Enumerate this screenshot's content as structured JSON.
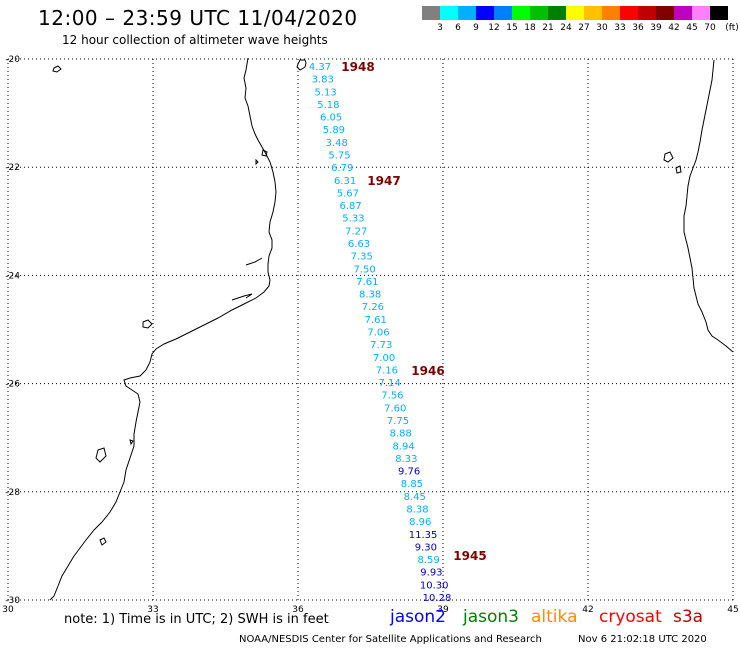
{
  "header": {
    "title": "12:00 – 23:59 UTC 11/04/2020",
    "subtitle": "12 hour collection of altimeter wave heights"
  },
  "legend": {
    "colors": [
      "#808080",
      "#00ffff",
      "#00b0ff",
      "#0000ff",
      "#0080ff",
      "#00ff00",
      "#00c000",
      "#008000",
      "#ffff00",
      "#ffc000",
      "#ff8000",
      "#ff0000",
      "#c00000",
      "#800000",
      "#c000c0",
      "#ff80ff",
      "#000000"
    ],
    "labels": [
      "3",
      "6",
      "9",
      "12",
      "15",
      "18",
      "21",
      "24",
      "27",
      "30",
      "33",
      "36",
      "39",
      "42",
      "45",
      "70"
    ],
    "unit": "(ft)"
  },
  "map": {
    "lon_ticks": [
      "30",
      "33",
      "36",
      "39",
      "42",
      "45"
    ],
    "lat_ticks": [
      "-20",
      "-22",
      "-24",
      "-26",
      "-28",
      "-30"
    ],
    "lon_range": [
      30,
      45
    ],
    "lat_range": [
      -30,
      -20
    ],
    "coast_color": "#000000",
    "grid_style": "dotted"
  },
  "track": {
    "color_cyan": "#00b0ff",
    "color_blue": "#0000cd",
    "values": [
      {
        "v": "4.37",
        "c": "cyan"
      },
      {
        "v": "3.83",
        "c": "cyan"
      },
      {
        "v": "5.13",
        "c": "cyan"
      },
      {
        "v": "5.18",
        "c": "cyan"
      },
      {
        "v": "6.05",
        "c": "cyan"
      },
      {
        "v": "5.89",
        "c": "cyan"
      },
      {
        "v": "3.48",
        "c": "cyan"
      },
      {
        "v": "5.75",
        "c": "cyan"
      },
      {
        "v": "6.79",
        "c": "cyan"
      },
      {
        "v": "6.31",
        "c": "cyan"
      },
      {
        "v": "5.67",
        "c": "cyan"
      },
      {
        "v": "6.87",
        "c": "cyan"
      },
      {
        "v": "5.33",
        "c": "cyan"
      },
      {
        "v": "7.27",
        "c": "cyan"
      },
      {
        "v": "6.63",
        "c": "cyan"
      },
      {
        "v": "7.35",
        "c": "cyan"
      },
      {
        "v": "7.50",
        "c": "cyan"
      },
      {
        "v": "7.61",
        "c": "cyan"
      },
      {
        "v": "8.38",
        "c": "cyan"
      },
      {
        "v": "7.26",
        "c": "cyan"
      },
      {
        "v": "7.61",
        "c": "cyan"
      },
      {
        "v": "7.06",
        "c": "cyan"
      },
      {
        "v": "7.73",
        "c": "cyan"
      },
      {
        "v": "7.00",
        "c": "cyan"
      },
      {
        "v": "7.16",
        "c": "cyan"
      },
      {
        "v": "7.14",
        "c": "cyan"
      },
      {
        "v": "7.56",
        "c": "cyan"
      },
      {
        "v": "7.60",
        "c": "cyan"
      },
      {
        "v": "7.75",
        "c": "cyan"
      },
      {
        "v": "8.88",
        "c": "cyan"
      },
      {
        "v": "8.94",
        "c": "cyan"
      },
      {
        "v": "8.33",
        "c": "cyan"
      },
      {
        "v": "9.76",
        "c": "blue"
      },
      {
        "v": "8.85",
        "c": "cyan"
      },
      {
        "v": "8.45",
        "c": "cyan"
      },
      {
        "v": "8.38",
        "c": "cyan"
      },
      {
        "v": "8.96",
        "c": "cyan"
      },
      {
        "v": "11.35",
        "c": "blue"
      },
      {
        "v": "9.30",
        "c": "blue"
      },
      {
        "v": "8.59",
        "c": "cyan"
      },
      {
        "v": "9.93",
        "c": "blue"
      },
      {
        "v": "10.30",
        "c": "blue"
      },
      {
        "v": "10.28",
        "c": "blue"
      }
    ],
    "times": [
      "1948",
      "1947",
      "1946",
      "1945"
    ],
    "time_color": "#800000"
  },
  "footer": {
    "note": "note:  1) Time is in UTC;  2) SWH is in feet",
    "satellites": [
      {
        "name": "jason2",
        "color": "#0000ff"
      },
      {
        "name": "jason3",
        "color": "#008000"
      },
      {
        "name": "altika",
        "color": "#ff8c00"
      },
      {
        "name": "cryosat",
        "color": "#ff0000"
      },
      {
        "name": "s3a",
        "color": "#c00000"
      }
    ],
    "credit": "NOAA/NESDIS Center for Satellite Applications and Research",
    "timestamp": "Nov  6 21:02:18 UTC 2020"
  }
}
